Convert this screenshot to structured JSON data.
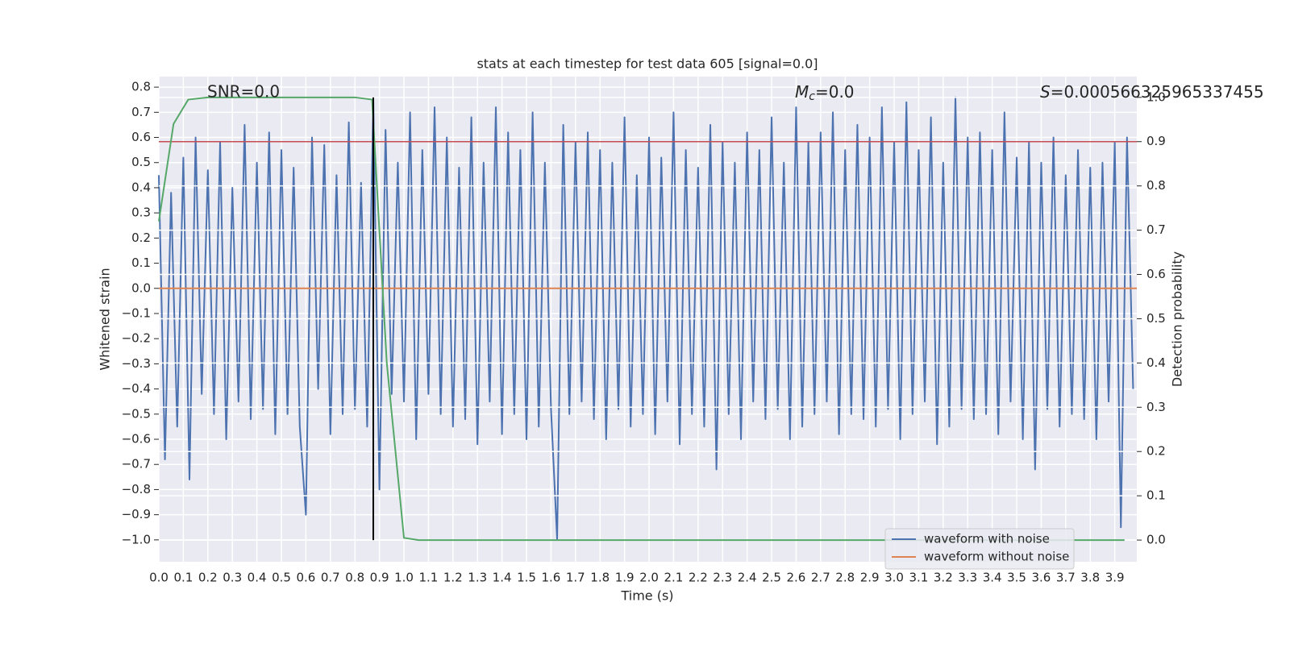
{
  "chart_data": {
    "type": "line",
    "title": "stats at each timestep for test data 605 [signal=0.0]",
    "xlabel": "Time (s)",
    "ylabel": "Whitened strain",
    "y2label": "Detection probability",
    "annotations": [
      {
        "text": "SNR=0.0"
      },
      {
        "symbol": "M",
        "subscript": "c",
        "text": "=0.0"
      },
      {
        "symbol": "S",
        "text": "=0.000566325965337455"
      }
    ],
    "xlim": [
      0,
      3.99
    ],
    "ylim": [
      -1.087,
      0.842
    ],
    "y2lim": [
      -0.049,
      1.047
    ],
    "xticks": [
      {
        "value": 0,
        "label": "0.0"
      },
      0.1,
      0.2,
      0.3,
      0.4,
      0.5,
      0.6,
      0.7,
      0.8,
      0.9,
      {
        "value": 1,
        "label": "1.0"
      },
      1.1,
      1.2,
      1.3,
      1.4,
      1.5,
      1.6,
      1.7,
      1.8,
      1.9,
      {
        "value": 2,
        "label": "2.0"
      },
      2.1,
      2.2,
      2.3,
      2.4,
      2.5,
      2.6,
      2.7,
      2.8,
      2.9,
      {
        "value": 3,
        "label": "3.0"
      },
      3.1,
      3.2,
      3.3,
      3.4,
      3.5,
      3.6,
      3.7,
      3.8,
      3.9
    ],
    "yticks": [
      0.8,
      0.7,
      0.6,
      0.5,
      0.4,
      0.3,
      0.2,
      0.1,
      {
        "value": 0,
        "label": "0.0"
      },
      {
        "value": -0.1,
        "label": "−0.1"
      },
      {
        "value": -0.2,
        "label": "−0.2"
      },
      {
        "value": -0.3,
        "label": "−0.3"
      },
      {
        "value": -0.4,
        "label": "−0.4"
      },
      {
        "value": -0.5,
        "label": "−0.5"
      },
      {
        "value": -0.6,
        "label": "−0.6"
      },
      {
        "value": -0.7,
        "label": "−0.7"
      },
      {
        "value": -0.8,
        "label": "−0.8"
      },
      {
        "value": -0.9,
        "label": "−0.9"
      },
      {
        "value": -1,
        "label": "−1.0"
      }
    ],
    "y2ticks": [
      {
        "value": 0,
        "label": "0.0"
      },
      0.1,
      0.2,
      0.3,
      0.4,
      0.5,
      0.6,
      0.7,
      0.8,
      0.9,
      {
        "value": 1,
        "label": "1.0"
      }
    ],
    "grid": true,
    "legend": "lower right",
    "threshold": {
      "value": 0.9,
      "color": "#c44e52",
      "axis": "y2"
    },
    "marker_x": {
      "value": 0.875,
      "color": "#000000"
    },
    "series": [
      {
        "name": "waveform with noise",
        "color": "#4c72b0",
        "axis": "y",
        "x": [
          0,
          0.025,
          0.05,
          0.075,
          0.1,
          0.125,
          0.15,
          0.175,
          0.2,
          0.225,
          0.25,
          0.275,
          0.3,
          0.325,
          0.35,
          0.375,
          0.4,
          0.425,
          0.45,
          0.475,
          0.5,
          0.525,
          0.55,
          0.575,
          0.6,
          0.625,
          0.65,
          0.675,
          0.7,
          0.725,
          0.75,
          0.775,
          0.8,
          0.825,
          0.85,
          0.875,
          0.9,
          0.925,
          0.95,
          0.975,
          1,
          1.025,
          1.05,
          1.075,
          1.1,
          1.125,
          1.15,
          1.175,
          1.2,
          1.225,
          1.25,
          1.275,
          1.3,
          1.325,
          1.35,
          1.375,
          1.4,
          1.425,
          1.45,
          1.475,
          1.5,
          1.525,
          1.55,
          1.575,
          1.6,
          1.625,
          1.65,
          1.675,
          1.7,
          1.725,
          1.75,
          1.775,
          1.8,
          1.825,
          1.85,
          1.875,
          1.9,
          1.925,
          1.95,
          1.975,
          2,
          2.025,
          2.05,
          2.075,
          2.1,
          2.125,
          2.15,
          2.175,
          2.2,
          2.225,
          2.25,
          2.275,
          2.3,
          2.325,
          2.35,
          2.375,
          2.4,
          2.425,
          2.45,
          2.475,
          2.5,
          2.525,
          2.55,
          2.575,
          2.6,
          2.625,
          2.65,
          2.675,
          2.7,
          2.725,
          2.75,
          2.775,
          2.8,
          2.825,
          2.85,
          2.875,
          2.9,
          2.925,
          2.95,
          2.975,
          3,
          3.025,
          3.05,
          3.075,
          3.1,
          3.125,
          3.15,
          3.175,
          3.2,
          3.225,
          3.25,
          3.275,
          3.3,
          3.325,
          3.35,
          3.375,
          3.4,
          3.425,
          3.45,
          3.475,
          3.5,
          3.525,
          3.55,
          3.575,
          3.6,
          3.625,
          3.65,
          3.675,
          3.7,
          3.725,
          3.75,
          3.775,
          3.8,
          3.825,
          3.85,
          3.875,
          3.9,
          3.925,
          3.95,
          3.975
        ],
        "values": [
          0.45,
          -0.68,
          0.38,
          -0.55,
          0.52,
          -0.76,
          0.6,
          -0.42,
          0.47,
          -0.5,
          0.58,
          -0.6,
          0.4,
          -0.45,
          0.65,
          -0.52,
          0.5,
          -0.48,
          0.62,
          -0.58,
          0.55,
          -0.5,
          0.48,
          -0.55,
          -0.9,
          0.6,
          -0.4,
          0.57,
          -0.58,
          0.45,
          -0.5,
          0.66,
          -0.48,
          0.42,
          -0.55,
          0.75,
          -0.8,
          0.63,
          -0.42,
          0.5,
          -0.45,
          0.7,
          -0.6,
          0.55,
          -0.42,
          0.72,
          -0.5,
          0.6,
          -0.55,
          0.48,
          -0.52,
          0.68,
          -0.62,
          0.5,
          -0.45,
          0.72,
          -0.58,
          0.62,
          -0.5,
          0.55,
          -0.6,
          0.7,
          -0.55,
          0.5,
          -0.48,
          -1.0,
          0.65,
          -0.5,
          0.58,
          -0.45,
          0.62,
          -0.52,
          0.55,
          -0.6,
          0.5,
          -0.48,
          0.68,
          -0.55,
          0.45,
          -0.5,
          0.6,
          -0.58,
          0.52,
          -0.45,
          0.7,
          -0.62,
          0.55,
          -0.5,
          0.48,
          -0.55,
          0.65,
          -0.72,
          0.58,
          -0.5,
          0.5,
          -0.6,
          0.62,
          -0.45,
          0.55,
          -0.52,
          0.68,
          -0.48,
          0.5,
          -0.6,
          0.72,
          -0.55,
          0.58,
          -0.5,
          0.62,
          -0.45,
          0.7,
          -0.58,
          0.55,
          -0.5,
          0.65,
          -0.52,
          0.6,
          -0.55,
          0.72,
          -0.48,
          0.58,
          -0.6,
          0.74,
          -0.5,
          0.55,
          -0.45,
          0.68,
          -0.62,
          0.5,
          -0.55,
          0.76,
          -0.48,
          0.6,
          -0.52,
          0.62,
          -0.5,
          0.55,
          -0.58,
          0.7,
          -0.45,
          0.52,
          -0.6,
          0.58,
          -0.72,
          0.5,
          -0.48,
          0.6,
          -0.55,
          0.45,
          -0.5,
          0.55,
          -0.52,
          0.48,
          -0.6,
          0.5,
          -0.45,
          0.58,
          -0.95,
          0.6,
          -0.4
        ]
      },
      {
        "name": "waveform without noise",
        "color": "#dd8452",
        "axis": "y",
        "x": [
          0,
          3.99
        ],
        "values": [
          0,
          0
        ]
      },
      {
        "color": "#55a868",
        "axis": "y2",
        "x": [
          0,
          0.06,
          0.12,
          0.2,
          0.4,
          0.6,
          0.8,
          0.87,
          0.93,
          1.0,
          1.06,
          1.5,
          2.0,
          2.5,
          3.0,
          3.5,
          3.94
        ],
        "values": [
          0.72,
          0.94,
          0.995,
          1.0,
          1.0,
          1.0,
          1.0,
          0.995,
          0.4,
          0.005,
          0.0,
          0.0,
          0.0,
          0.0,
          0.0,
          0.0,
          0.0
        ]
      }
    ]
  }
}
